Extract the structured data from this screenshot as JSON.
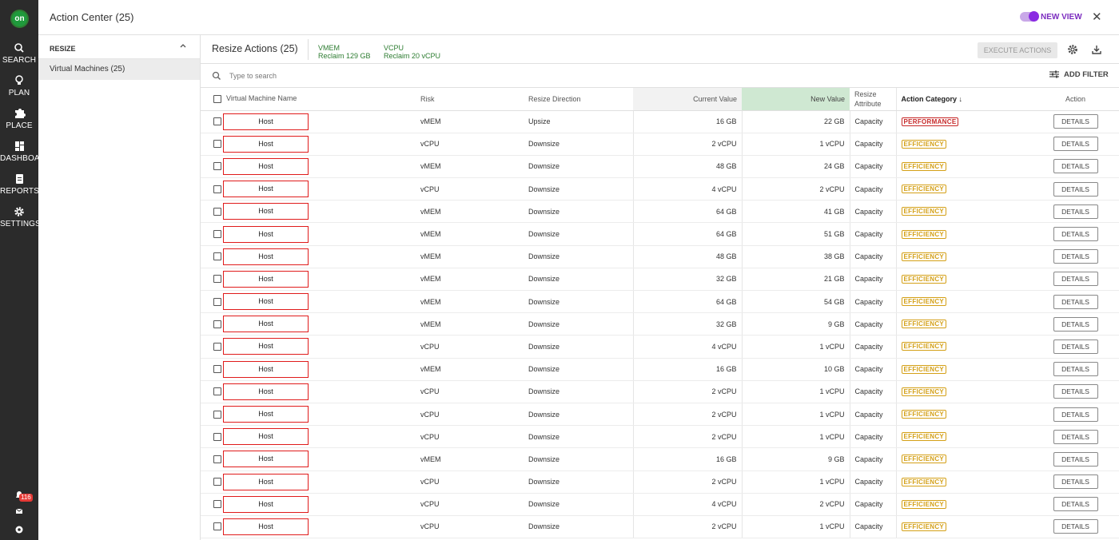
{
  "nav": {
    "logo": "on",
    "items": [
      {
        "label": "SEARCH",
        "icon": "search-icon"
      },
      {
        "label": "PLAN",
        "icon": "lightbulb-icon"
      },
      {
        "label": "PLACE",
        "icon": "puzzle-icon"
      },
      {
        "label": "DASHBOARD",
        "icon": "dashboard-icon"
      },
      {
        "label": "REPORTS",
        "icon": "clipboard-icon"
      },
      {
        "label": "SETTINGS",
        "icon": "gear-icon"
      }
    ],
    "notification_count": "116"
  },
  "header": {
    "title": "Action Center (25)",
    "new_view_label": "NEW VIEW",
    "close_icon": "close-icon"
  },
  "sidebar": {
    "section_title": "RESIZE",
    "items": [
      {
        "label": "Virtual Machines (25)"
      }
    ]
  },
  "summary": {
    "title": "Resize Actions (25)",
    "reclaims": [
      {
        "name": "VMEM",
        "value": "Reclaim 129 GB"
      },
      {
        "name": "VCPU",
        "value": "Reclaim 20 vCPU"
      }
    ],
    "execute_label": "EXECUTE ACTIONS"
  },
  "search": {
    "placeholder": "Type to search",
    "add_filter_label": "ADD FILTER"
  },
  "table": {
    "headers": {
      "name": "Virtual Machine Name",
      "risk": "Risk",
      "direction": "Resize Direction",
      "current": "Current Value",
      "new": "New Value",
      "attribute": "Resize Attribute",
      "category": "Action Category",
      "action": "Action"
    },
    "details_label": "DETAILS",
    "rows": [
      {
        "name": "Host",
        "risk": "vMEM",
        "direction": "Upsize",
        "current": "16 GB",
        "new": "22 GB",
        "attribute": "Capacity",
        "category": "PERFORMANCE"
      },
      {
        "name": "Host",
        "risk": "vCPU",
        "direction": "Downsize",
        "current": "2 vCPU",
        "new": "1 vCPU",
        "attribute": "Capacity",
        "category": "EFFICIENCY"
      },
      {
        "name": "Host",
        "risk": "vMEM",
        "direction": "Downsize",
        "current": "48 GB",
        "new": "24 GB",
        "attribute": "Capacity",
        "category": "EFFICIENCY"
      },
      {
        "name": "Host",
        "risk": "vCPU",
        "direction": "Downsize",
        "current": "4 vCPU",
        "new": "2 vCPU",
        "attribute": "Capacity",
        "category": "EFFICIENCY"
      },
      {
        "name": "Host",
        "risk": "vMEM",
        "direction": "Downsize",
        "current": "64 GB",
        "new": "41 GB",
        "attribute": "Capacity",
        "category": "EFFICIENCY"
      },
      {
        "name": "Host",
        "risk": "vMEM",
        "direction": "Downsize",
        "current": "64 GB",
        "new": "51 GB",
        "attribute": "Capacity",
        "category": "EFFICIENCY"
      },
      {
        "name": "Host",
        "risk": "vMEM",
        "direction": "Downsize",
        "current": "48 GB",
        "new": "38 GB",
        "attribute": "Capacity",
        "category": "EFFICIENCY"
      },
      {
        "name": "Host",
        "risk": "vMEM",
        "direction": "Downsize",
        "current": "32 GB",
        "new": "21 GB",
        "attribute": "Capacity",
        "category": "EFFICIENCY"
      },
      {
        "name": "Host",
        "risk": "vMEM",
        "direction": "Downsize",
        "current": "64 GB",
        "new": "54 GB",
        "attribute": "Capacity",
        "category": "EFFICIENCY"
      },
      {
        "name": "Host",
        "risk": "vMEM",
        "direction": "Downsize",
        "current": "32 GB",
        "new": "9 GB",
        "attribute": "Capacity",
        "category": "EFFICIENCY"
      },
      {
        "name": "Host",
        "risk": "vCPU",
        "direction": "Downsize",
        "current": "4 vCPU",
        "new": "1 vCPU",
        "attribute": "Capacity",
        "category": "EFFICIENCY"
      },
      {
        "name": "Host",
        "risk": "vMEM",
        "direction": "Downsize",
        "current": "16 GB",
        "new": "10 GB",
        "attribute": "Capacity",
        "category": "EFFICIENCY"
      },
      {
        "name": "Host",
        "risk": "vCPU",
        "direction": "Downsize",
        "current": "2 vCPU",
        "new": "1 vCPU",
        "attribute": "Capacity",
        "category": "EFFICIENCY"
      },
      {
        "name": "Host",
        "risk": "vCPU",
        "direction": "Downsize",
        "current": "2 vCPU",
        "new": "1 vCPU",
        "attribute": "Capacity",
        "category": "EFFICIENCY"
      },
      {
        "name": "Host",
        "risk": "vCPU",
        "direction": "Downsize",
        "current": "2 vCPU",
        "new": "1 vCPU",
        "attribute": "Capacity",
        "category": "EFFICIENCY"
      },
      {
        "name": "Host",
        "risk": "vMEM",
        "direction": "Downsize",
        "current": "16 GB",
        "new": "9 GB",
        "attribute": "Capacity",
        "category": "EFFICIENCY"
      },
      {
        "name": "Host",
        "risk": "vCPU",
        "direction": "Downsize",
        "current": "2 vCPU",
        "new": "1 vCPU",
        "attribute": "Capacity",
        "category": "EFFICIENCY"
      },
      {
        "name": "Host",
        "risk": "vCPU",
        "direction": "Downsize",
        "current": "4 vCPU",
        "new": "2 vCPU",
        "attribute": "Capacity",
        "category": "EFFICIENCY"
      },
      {
        "name": "Host",
        "risk": "vCPU",
        "direction": "Downsize",
        "current": "2 vCPU",
        "new": "1 vCPU",
        "attribute": "Capacity",
        "category": "EFFICIENCY"
      }
    ]
  },
  "colors": {
    "accent_purple": "#8a2be2",
    "reclaim_green": "#2e7d32",
    "performance_red": "#c62828",
    "efficiency_yellow": "#d4a017",
    "nav_bg": "#2b2b2b"
  }
}
